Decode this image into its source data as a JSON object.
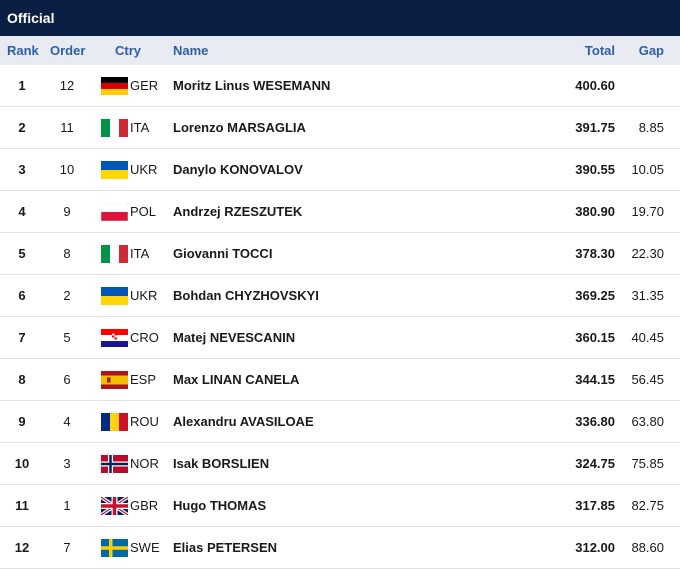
{
  "title": "Official",
  "columns": {
    "rank": "Rank",
    "order": "Order",
    "ctry": "Ctry",
    "name": "Name",
    "total": "Total",
    "gap": "Gap"
  },
  "rows": [
    {
      "rank": "1",
      "order": "12",
      "ctry": "GER",
      "flag": "germany-flag-icon",
      "name": "Moritz Linus WESEMANN",
      "total": "400.60",
      "gap": ""
    },
    {
      "rank": "2",
      "order": "11",
      "ctry": "ITA",
      "flag": "italy-flag-icon",
      "name": "Lorenzo MARSAGLIA",
      "total": "391.75",
      "gap": "8.85"
    },
    {
      "rank": "3",
      "order": "10",
      "ctry": "UKR",
      "flag": "ukraine-flag-icon",
      "name": "Danylo KONOVALOV",
      "total": "390.55",
      "gap": "10.05"
    },
    {
      "rank": "4",
      "order": "9",
      "ctry": "POL",
      "flag": "poland-flag-icon",
      "name": "Andrzej RZESZUTEK",
      "total": "380.90",
      "gap": "19.70"
    },
    {
      "rank": "5",
      "order": "8",
      "ctry": "ITA",
      "flag": "italy-flag-icon",
      "name": "Giovanni TOCCI",
      "total": "378.30",
      "gap": "22.30"
    },
    {
      "rank": "6",
      "order": "2",
      "ctry": "UKR",
      "flag": "ukraine-flag-icon",
      "name": "Bohdan CHYZHOVSKYI",
      "total": "369.25",
      "gap": "31.35"
    },
    {
      "rank": "7",
      "order": "5",
      "ctry": "CRO",
      "flag": "croatia-flag-icon",
      "name": "Matej NEVESCANIN",
      "total": "360.15",
      "gap": "40.45"
    },
    {
      "rank": "8",
      "order": "6",
      "ctry": "ESP",
      "flag": "spain-flag-icon",
      "name": "Max LINAN CANELA",
      "total": "344.15",
      "gap": "56.45"
    },
    {
      "rank": "9",
      "order": "4",
      "ctry": "ROU",
      "flag": "romania-flag-icon",
      "name": "Alexandru AVASILOAE",
      "total": "336.80",
      "gap": "63.80"
    },
    {
      "rank": "10",
      "order": "3",
      "ctry": "NOR",
      "flag": "norway-flag-icon",
      "name": "Isak BORSLIEN",
      "total": "324.75",
      "gap": "75.85"
    },
    {
      "rank": "11",
      "order": "1",
      "ctry": "GBR",
      "flag": "great-britain-flag-icon",
      "name": "Hugo THOMAS",
      "total": "317.85",
      "gap": "82.75"
    },
    {
      "rank": "12",
      "order": "7",
      "ctry": "SWE",
      "flag": "sweden-flag-icon",
      "name": "Elias PETERSEN",
      "total": "312.00",
      "gap": "88.60"
    }
  ],
  "colors": {
    "banner": "#0b1e44",
    "header_bg": "#e8ebf1",
    "header_text": "#2d5fa8"
  }
}
